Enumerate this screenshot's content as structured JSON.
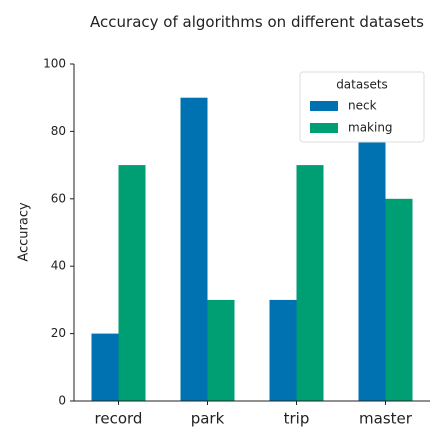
{
  "chart_data": {
    "type": "bar",
    "title": "Accuracy of algorithms on different datasets",
    "y_label": "Accuracy",
    "categories": [
      "record",
      "park",
      "trip",
      "master"
    ],
    "series": [
      {
        "name": "neck",
        "color": "#0072b2",
        "values": [
          20,
          90,
          30,
          80
        ]
      },
      {
        "name": "making",
        "color": "#009e73",
        "values": [
          70,
          30,
          70,
          60
        ]
      }
    ],
    "legend_title": "datasets",
    "legend": "upper right",
    "ylim": [
      0,
      100
    ],
    "yticks": [
      0,
      20,
      40,
      60,
      80,
      100
    ],
    "grid": false
  }
}
